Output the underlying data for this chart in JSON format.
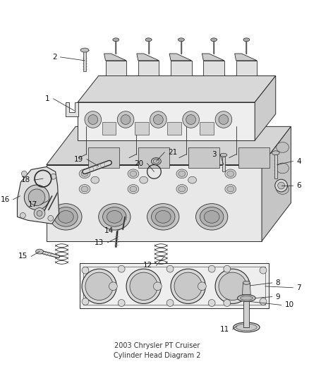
{
  "bg_color": "#ffffff",
  "line_color": "#2a2a2a",
  "light_fill": "#f0f0f0",
  "mid_fill": "#d8d8d8",
  "dark_fill": "#b8b8b8",
  "title": "2003 Chrysler PT Cruiser\nCylinder Head Diagram 2",
  "label_size": 7.5,
  "dpi": 100,
  "figw": 4.38,
  "figh": 5.33
}
